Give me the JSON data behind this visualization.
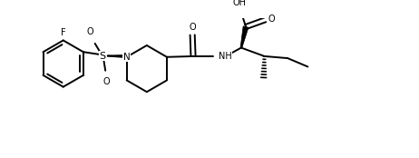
{
  "bg": "#ffffff",
  "lc": "#000000",
  "lw": 1.4,
  "blw": 3.2,
  "figsize": [
    4.62,
    1.74
  ],
  "dpi": 100,
  "xlim": [
    0.0,
    9.8
  ],
  "ylim": [
    0.0,
    3.6
  ]
}
